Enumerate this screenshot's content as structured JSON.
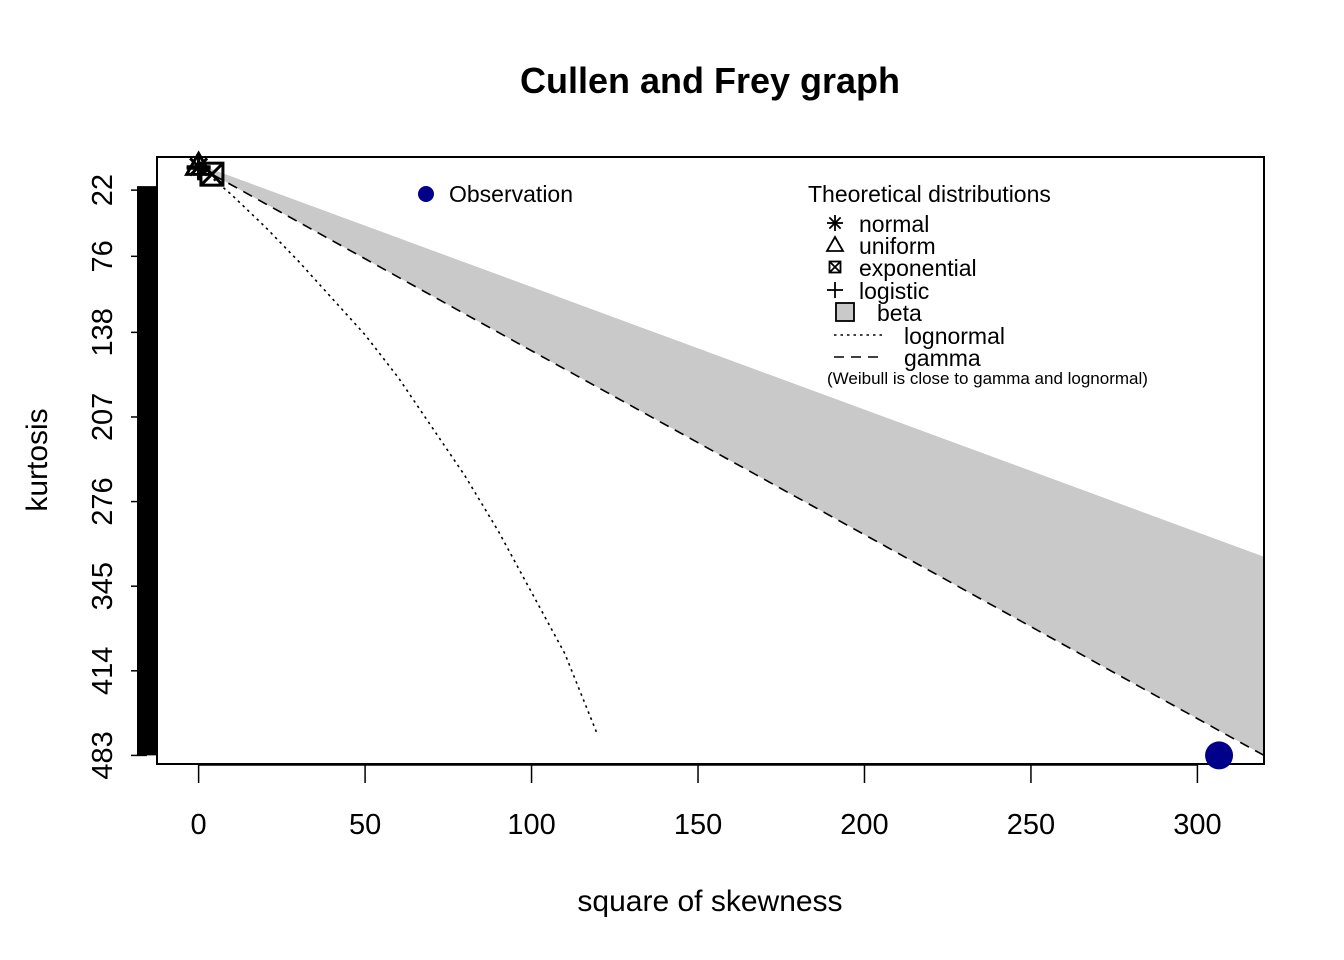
{
  "chart_data": {
    "type": "scatter",
    "title": "Cullen and Frey graph",
    "xlabel": "square of skewness",
    "ylabel": "kurtosis",
    "xlim": [
      -12.5,
      320
    ],
    "ylim": [
      490,
      -5
    ],
    "x_ticks": [
      0,
      50,
      100,
      150,
      200,
      250,
      300
    ],
    "y_ticks": [
      22,
      76,
      138,
      207,
      276,
      345,
      414,
      483
    ],
    "grid": false,
    "observation": {
      "name": "Observation",
      "x": 306.5,
      "y": 483,
      "color": "#00008B"
    },
    "legend_observation": {
      "label": "Observation",
      "position": "top-center"
    },
    "legend": {
      "title": "Theoretical distributions",
      "position": "top-right",
      "entries": [
        {
          "label": "normal",
          "symbol": "asterisk"
        },
        {
          "label": "uniform",
          "symbol": "triangle"
        },
        {
          "label": "exponential",
          "symbol": "boxed-x"
        },
        {
          "label": "logistic",
          "symbol": "plus"
        },
        {
          "label": "beta",
          "symbol": "filled-square"
        },
        {
          "label": "lognormal",
          "symbol": "dotted-line"
        },
        {
          "label": "gamma",
          "symbol": "dashed-line"
        }
      ],
      "note": "(Weibull is close to gamma and lognormal)"
    },
    "theoretical_points": [
      {
        "name": "normal",
        "x": 0,
        "y": 3
      },
      {
        "name": "uniform",
        "x": 0,
        "y": 1.8
      },
      {
        "name": "exponential",
        "x": 4,
        "y": 9
      },
      {
        "name": "logistic",
        "x": 0,
        "y": 4.2
      }
    ],
    "beta_region": {
      "lower_bound": {
        "x": [
          0,
          320
        ],
        "y": [
          1,
          321
        ]
      },
      "upper_bound": {
        "x": [
          0,
          320
        ],
        "y": [
          3,
          483
        ]
      }
    },
    "series": [
      {
        "name": "gamma",
        "style": "dashed",
        "x": [
          0,
          320
        ],
        "y": [
          3,
          483
        ]
      },
      {
        "name": "lognormal",
        "style": "dotted",
        "x": [
          0,
          4,
          10,
          20,
          30,
          40,
          50,
          60,
          70,
          80,
          90,
          100,
          110,
          119.8
        ],
        "y": [
          3,
          12,
          26,
          52,
          80,
          110,
          140,
          175,
          215,
          255,
          300,
          350,
          400,
          466
        ]
      }
    ],
    "colors": {
      "beta_fill": "#C9C9C9",
      "observation": "#00008B",
      "axis": "#000000"
    }
  }
}
